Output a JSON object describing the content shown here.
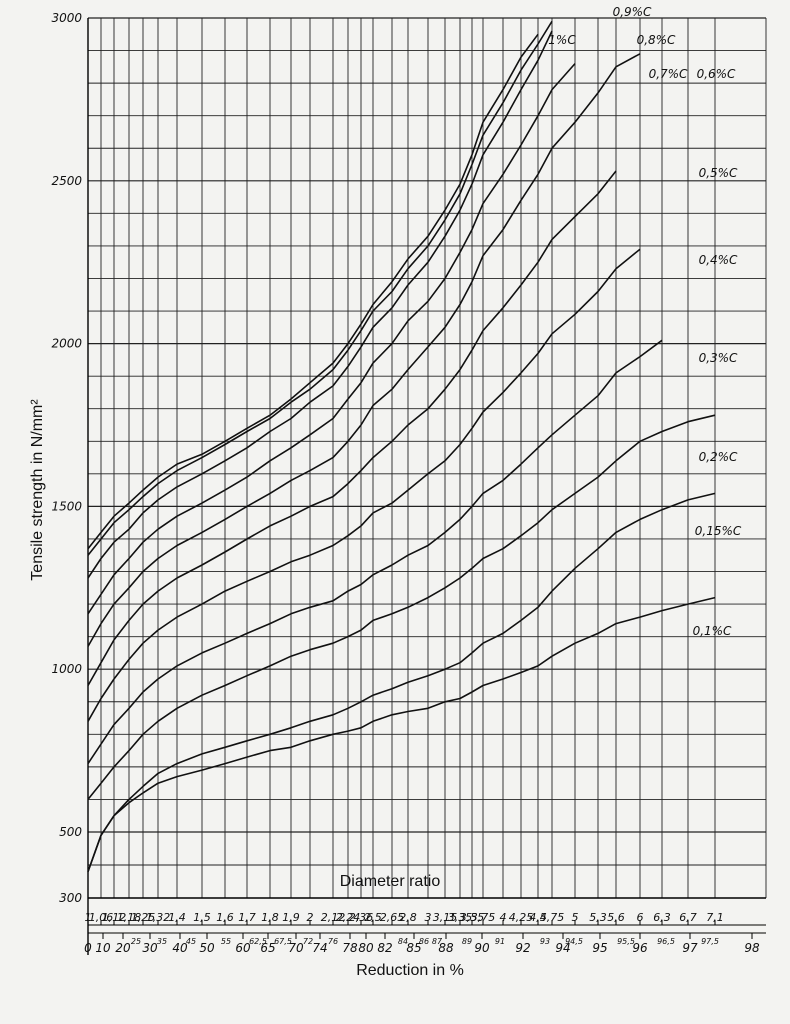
{
  "chart_data": {
    "type": "line",
    "title": "",
    "ylabel": "Tensile strength in N/mm²",
    "xlabel_top": "Diameter ratio",
    "xlabel_bottom": "Reduction in %",
    "ylim": [
      300,
      3000
    ],
    "y_ticks": [
      300,
      500,
      1000,
      1500,
      2000,
      2500,
      3000
    ],
    "grid": true,
    "diameter_ratio_ticks": [
      "1",
      "1,06",
      "1,12",
      "1,18",
      "1,25",
      "1,32",
      "1,4",
      "1,5",
      "1,6",
      "1,7",
      "1,8",
      "1,9",
      "2",
      "2,12",
      "2,24",
      "2,36",
      "2,5",
      "2,65",
      "2,8",
      "3",
      "3,15",
      "3,35",
      "3,55",
      "3,75",
      "4",
      "4,25",
      "4,5",
      "4,75",
      "5",
      "5,3",
      "5,6",
      "6",
      "6,3",
      "6,7",
      "7,1"
    ],
    "reduction_ticks_main": [
      "0",
      "10",
      "20",
      "30",
      "40",
      "50",
      "60",
      "65",
      "70",
      "74",
      "78",
      "80",
      "82",
      "85",
      "88",
      "90",
      "92",
      "94",
      "95",
      "96",
      "97",
      "98"
    ],
    "reduction_ticks_small": [
      "25",
      "35",
      "45",
      "55",
      "62,5",
      "67,5",
      "72",
      "76",
      "84",
      "86",
      "87",
      "89",
      "91",
      "93",
      "94,5",
      "95,5",
      "96,5",
      "97,5"
    ],
    "x": [
      "1",
      "1,06",
      "1,12",
      "1,18",
      "1,25",
      "1,32",
      "1,4",
      "1,5",
      "1,6",
      "1,7",
      "1,8",
      "1,9",
      "2",
      "2,12",
      "2,24",
      "2,36",
      "2,5",
      "2,65",
      "2,8",
      "3",
      "3,15",
      "3,35",
      "3,55",
      "3,75",
      "4",
      "4,25",
      "4,5",
      "4,75",
      "5",
      "5,3",
      "5,6",
      "6",
      "6,3",
      "6,7",
      "7,1"
    ],
    "series": [
      {
        "name": "1%C",
        "values": [
          1370,
          1420,
          1470,
          1510,
          1550,
          1590,
          1630,
          1660,
          1700,
          1740,
          1780,
          1830,
          1880,
          1940,
          2000,
          2060,
          2120,
          2190,
          2260,
          2330,
          2410,
          2490,
          2580,
          2680,
          2780,
          2880,
          2950,
          null,
          null,
          null,
          null,
          null,
          null,
          null,
          null
        ]
      },
      {
        "name": "0,9%C",
        "values": [
          1350,
          1400,
          1450,
          1490,
          1530,
          1570,
          1610,
          1650,
          1690,
          1730,
          1770,
          1820,
          1860,
          1920,
          1980,
          2040,
          2100,
          2160,
          2230,
          2300,
          2380,
          2460,
          2550,
          2640,
          2740,
          2840,
          2920,
          2990,
          null,
          null,
          null,
          null,
          null,
          null,
          null
        ]
      },
      {
        "name": "0,8%C",
        "values": [
          1280,
          1340,
          1390,
          1430,
          1480,
          1520,
          1560,
          1600,
          1640,
          1680,
          1730,
          1770,
          1820,
          1870,
          1930,
          1990,
          2050,
          2110,
          2180,
          2250,
          2330,
          2410,
          2490,
          2580,
          2680,
          2780,
          2870,
          2960,
          null,
          null,
          null,
          null,
          null,
          null,
          null
        ]
      },
      {
        "name": "0,7%C",
        "values": [
          1170,
          1230,
          1290,
          1340,
          1390,
          1430,
          1470,
          1510,
          1550,
          1590,
          1640,
          1680,
          1720,
          1770,
          1830,
          1880,
          1940,
          2000,
          2070,
          2130,
          2200,
          2280,
          2350,
          2430,
          2520,
          2610,
          2700,
          2780,
          2860,
          null,
          null,
          null,
          null,
          null,
          null
        ]
      },
      {
        "name": "0,6%C",
        "values": [
          1070,
          1140,
          1200,
          1250,
          1300,
          1340,
          1380,
          1420,
          1460,
          1500,
          1540,
          1580,
          1610,
          1650,
          1700,
          1750,
          1810,
          1860,
          1920,
          1990,
          2050,
          2120,
          2190,
          2270,
          2350,
          2440,
          2520,
          2600,
          2680,
          2770,
          2850,
          2890,
          null,
          null,
          null
        ]
      },
      {
        "name": "0,5%C",
        "values": [
          950,
          1020,
          1090,
          1150,
          1200,
          1240,
          1280,
          1320,
          1360,
          1400,
          1440,
          1470,
          1500,
          1530,
          1570,
          1610,
          1650,
          1700,
          1750,
          1800,
          1860,
          1920,
          1980,
          2040,
          2110,
          2180,
          2250,
          2320,
          2390,
          2460,
          2530,
          null,
          null,
          null,
          null
        ]
      },
      {
        "name": "0,4%C",
        "values": [
          840,
          910,
          970,
          1030,
          1080,
          1120,
          1160,
          1200,
          1240,
          1270,
          1300,
          1330,
          1350,
          1380,
          1410,
          1440,
          1480,
          1510,
          1550,
          1600,
          1640,
          1690,
          1740,
          1790,
          1850,
          1910,
          1970,
          2030,
          2090,
          2160,
          2230,
          2290,
          null,
          null,
          null
        ]
      },
      {
        "name": "0,3%C",
        "values": [
          710,
          770,
          830,
          880,
          930,
          970,
          1010,
          1050,
          1080,
          1110,
          1140,
          1170,
          1190,
          1210,
          1240,
          1260,
          1290,
          1320,
          1350,
          1380,
          1420,
          1460,
          1500,
          1540,
          1580,
          1630,
          1680,
          1720,
          1780,
          1840,
          1910,
          1960,
          2010,
          null,
          null
        ]
      },
      {
        "name": "0,2%C",
        "values": [
          600,
          650,
          700,
          750,
          800,
          840,
          880,
          920,
          950,
          980,
          1010,
          1040,
          1060,
          1080,
          1100,
          1120,
          1150,
          1170,
          1190,
          1220,
          1250,
          1280,
          1310,
          1340,
          1370,
          1410,
          1450,
          1490,
          1540,
          1590,
          1640,
          1700,
          1730,
          1760,
          1780
        ]
      },
      {
        "name": "0,15%C",
        "values": [
          380,
          490,
          550,
          600,
          640,
          680,
          710,
          740,
          760,
          780,
          800,
          820,
          840,
          860,
          880,
          900,
          920,
          940,
          960,
          980,
          1000,
          1020,
          1050,
          1080,
          1110,
          1150,
          1190,
          1240,
          1310,
          1370,
          1420,
          1460,
          1490,
          1520,
          1540
        ]
      },
      {
        "name": "0,1%C",
        "values": [
          380,
          490,
          550,
          590,
          620,
          650,
          670,
          690,
          710,
          730,
          750,
          760,
          780,
          800,
          810,
          820,
          840,
          860,
          870,
          880,
          900,
          910,
          930,
          950,
          970,
          990,
          1010,
          1040,
          1080,
          1110,
          1140,
          1160,
          1180,
          1200,
          1220
        ]
      }
    ]
  }
}
